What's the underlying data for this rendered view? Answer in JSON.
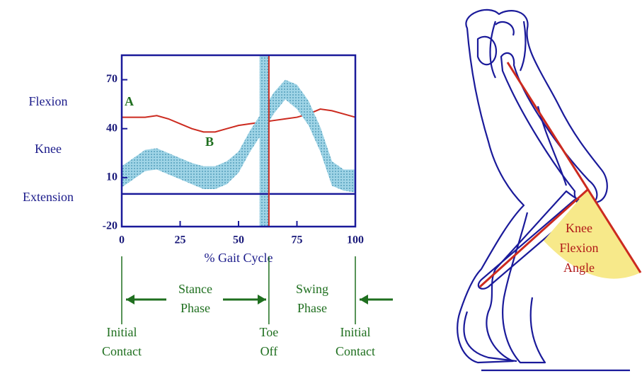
{
  "chart_data": {
    "type": "line",
    "xlabel": "% Gait Cycle",
    "ylabel_words": [
      "Flexion",
      "Knee",
      "Extension"
    ],
    "x": [
      0,
      5,
      10,
      15,
      20,
      25,
      30,
      35,
      40,
      45,
      50,
      55,
      60,
      65,
      70,
      75,
      80,
      85,
      90,
      95,
      100
    ],
    "xlim": [
      0,
      100
    ],
    "xticks": [
      0,
      25,
      50,
      75,
      100
    ],
    "ylim": [
      -20,
      85
    ],
    "yticks": [
      -20,
      10,
      40,
      70
    ],
    "zero_line": 0,
    "toe_off_band": [
      59,
      63
    ],
    "toe_off_line": 63,
    "series": [
      {
        "name": "A",
        "color": "#cc2a1f",
        "values": [
          47,
          47,
          47,
          48,
          46,
          43,
          40,
          38,
          38,
          40,
          42,
          43,
          44,
          45,
          46,
          47,
          49,
          52,
          51,
          49,
          47
        ]
      },
      {
        "name": "B",
        "color": "#8ccbe0",
        "upper": [
          17,
          22,
          27,
          28,
          25,
          22,
          19,
          17,
          17,
          20,
          26,
          39,
          50,
          62,
          70,
          67,
          57,
          41,
          20,
          15,
          15
        ],
        "lower": [
          4,
          9,
          14,
          15,
          12,
          9,
          6,
          3,
          3,
          6,
          13,
          26,
          37,
          49,
          58,
          52,
          42,
          26,
          5,
          2,
          1
        ]
      }
    ]
  },
  "gait_phases": {
    "stance": [
      "Stance",
      "Phase"
    ],
    "swing": [
      "Swing",
      "Phase"
    ],
    "events": [
      [
        "Initial",
        "Contact"
      ],
      [
        "Toe",
        "Off"
      ],
      [
        "Initial",
        "Contact"
      ]
    ]
  },
  "illustration": {
    "label": [
      "Knee",
      "Flexion",
      "Angle"
    ]
  }
}
